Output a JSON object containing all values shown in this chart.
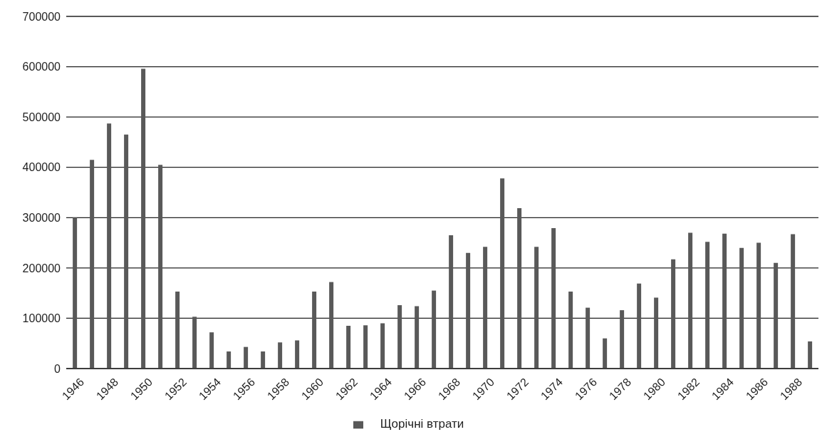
{
  "chart_data": {
    "type": "bar",
    "categories": [
      "1946",
      null,
      "1948",
      null,
      "1950",
      null,
      "1952",
      null,
      "1954",
      null,
      "1956",
      null,
      "1958",
      null,
      "1960",
      null,
      "1962",
      null,
      "1964",
      null,
      "1966",
      null,
      "1968",
      null,
      "1970",
      null,
      "1972",
      null,
      "1974",
      null,
      "1976",
      null,
      "1978",
      null,
      "1980",
      null,
      "1982",
      null,
      "1984",
      null,
      "1986",
      null,
      "1988",
      null
    ],
    "series": [
      {
        "name": "Щорічні втрати",
        "color": "#595959",
        "values": [
          300000,
          415000,
          487000,
          465000,
          596000,
          405000,
          153000,
          103000,
          72000,
          34000,
          43000,
          34000,
          52000,
          56000,
          153000,
          172000,
          85000,
          86000,
          90000,
          126000,
          124000,
          155000,
          265000,
          230000,
          242000,
          378000,
          319000,
          242000,
          279000,
          153000,
          121000,
          60000,
          116000,
          169000,
          141000,
          217000,
          270000,
          252000,
          268000,
          240000,
          250000,
          210000,
          267000,
          54000
        ]
      }
    ],
    "ylim": [
      0,
      700000
    ],
    "yticks": [
      0,
      100000,
      200000,
      300000,
      400000,
      500000,
      600000,
      700000
    ],
    "grid": "y",
    "legend": "bottom"
  }
}
